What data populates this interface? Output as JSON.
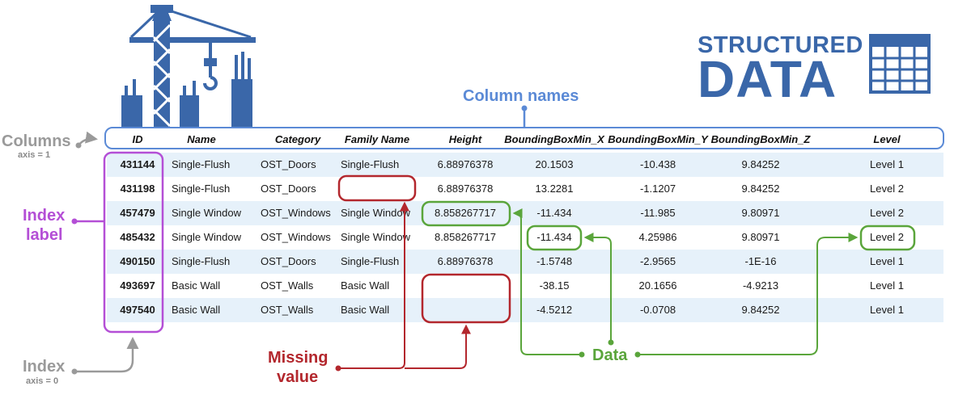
{
  "brand": {
    "top": "STRUCTURED",
    "bottom": "DATA"
  },
  "labels": {
    "column_names": "Column names",
    "columns": "Columns",
    "columns_axis": "axis = 1",
    "index_label_line1": "Index",
    "index_label_line2": "label",
    "index": "Index",
    "index_axis": "axis = 0",
    "missing_line1": "Missing",
    "missing_line2": "value",
    "data": "Data"
  },
  "colors": {
    "blue": "#5b8ad6",
    "navy": "#3a67a9",
    "purple": "#b44fd6",
    "green": "#5aa53b",
    "red": "#b3272d",
    "grey": "#9a9a9a"
  },
  "table": {
    "headers": [
      "ID",
      "Name",
      "Category",
      "Family Name",
      "Height",
      "BoundingBoxMin_X",
      "BoundingBoxMin_Y",
      "BoundingBoxMin_Z",
      "Level"
    ],
    "rows": [
      [
        "431144",
        "Single-Flush",
        "OST_Doors",
        "Single-Flush",
        "6.88976378",
        "20.1503",
        "-10.438",
        "9.84252",
        "Level 1"
      ],
      [
        "431198",
        "Single-Flush",
        "OST_Doors",
        "",
        "6.88976378",
        "13.2281",
        "-1.1207",
        "9.84252",
        "Level 2"
      ],
      [
        "457479",
        "Single Window",
        "OST_Windows",
        "Single Window",
        "8.858267717",
        "-11.434",
        "-11.985",
        "9.80971",
        "Level 2"
      ],
      [
        "485432",
        "Single Window",
        "OST_Windows",
        "Single Window",
        "8.858267717",
        "-11.434",
        "4.25986",
        "9.80971",
        "Level 2"
      ],
      [
        "490150",
        "Single-Flush",
        "OST_Doors",
        "Single-Flush",
        "6.88976378",
        "-1.5748",
        "-2.9565",
        "-1E-16",
        "Level 1"
      ],
      [
        "493697",
        "Basic Wall",
        "OST_Walls",
        "Basic Wall",
        "",
        "-38.15",
        "20.1656",
        "-4.9213",
        "Level 1"
      ],
      [
        "497540",
        "Basic Wall",
        "OST_Walls",
        "Basic Wall",
        "",
        "-4.5212",
        "-0.0708",
        "9.84252",
        "Level 1"
      ]
    ]
  }
}
